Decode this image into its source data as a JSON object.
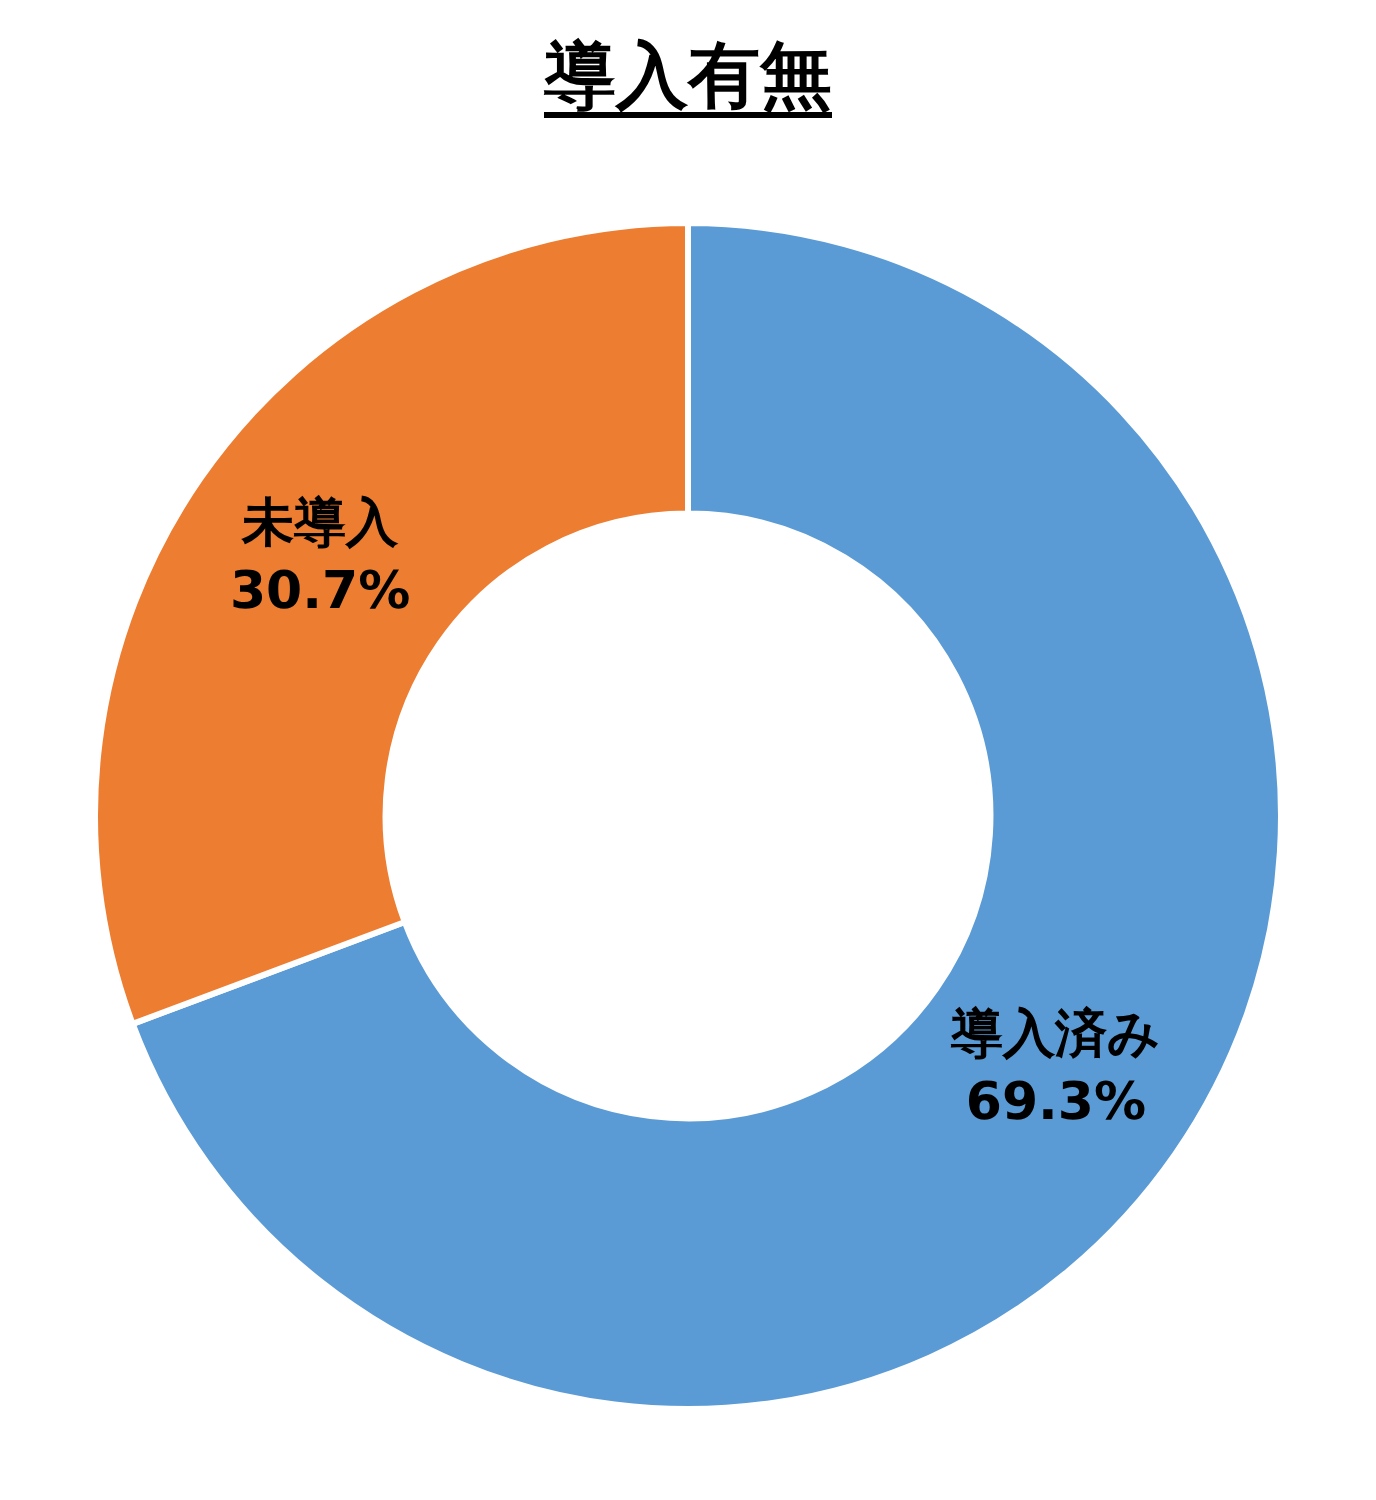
{
  "chart_data": {
    "type": "donut",
    "title": "導入有無",
    "categories": [
      "導入済み",
      "未導入"
    ],
    "values": [
      69.3,
      30.7
    ],
    "colors": [
      "#5b9bd5",
      "#ed7d31"
    ],
    "value_labels": [
      "69.3%",
      "30.7%"
    ],
    "legend": false
  }
}
